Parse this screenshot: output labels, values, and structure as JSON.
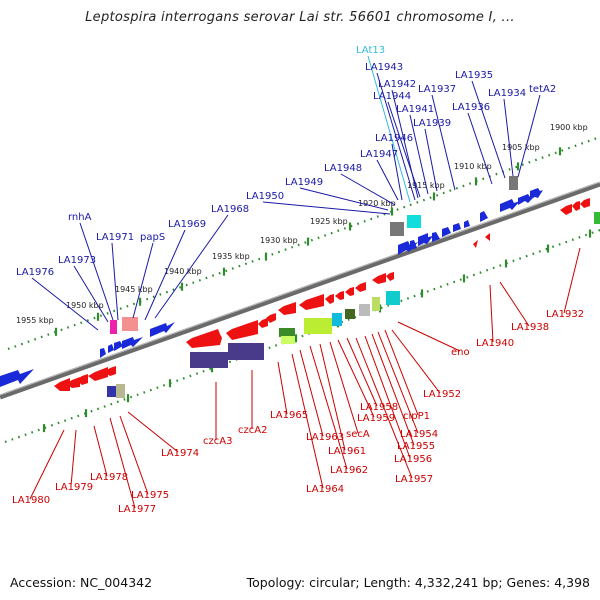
{
  "title": "Leptospira interrogans serovar Lai str. 56601 chromosome I, ...",
  "footer": {
    "accession": "Accession: NC_004342",
    "topology": "Topology: circular; Length: 4,332,241 bp; Genes: 4,398"
  },
  "colors": {
    "forward_label": "#1a1aa6",
    "reverse_label": "#cc0000",
    "rna_label": "#33bbdd",
    "forward_arrow": "#1a2ad8",
    "reverse_arrow": "#ee1111",
    "backbone": "#888888",
    "scale_tick": "#2e8b2e"
  },
  "scale_upper": [
    "1900 kbp",
    "1905 kbp",
    "1910 kbp",
    "1915 kbp",
    "1920 kbp",
    "1925 kbp",
    "1930 kbp",
    "1935 kbp",
    "1940 kbp",
    "1945 kbp",
    "1950 kbp",
    "1955 kbp"
  ],
  "forward_genes": [
    "LAt13",
    "LA1943",
    "LA1942",
    "LA1944",
    "LA1941",
    "LA1937",
    "LA1939",
    "LA1935",
    "LA1936",
    "LA1934",
    "tetA2",
    "LA1946",
    "LA1947",
    "LA1948",
    "LA1949",
    "LA1950",
    "LA1968",
    "LA1969",
    "papS",
    "LA1971",
    "rnhA",
    "LA1973",
    "LA1976"
  ],
  "reverse_genes": [
    "LA1932",
    "LA1938",
    "LA1940",
    "eno",
    "LA1952",
    "clpP1",
    "LA1954",
    "LA1955",
    "LA1956",
    "LA1957",
    "LA1958",
    "LA1959",
    "secA",
    "LA1961",
    "LA1962",
    "LA1963",
    "LA1964",
    "LA1965",
    "czcA2",
    "czcA3",
    "LA1974",
    "LA1975",
    "LA1977",
    "LA1978",
    "LA1979",
    "LA1980"
  ]
}
